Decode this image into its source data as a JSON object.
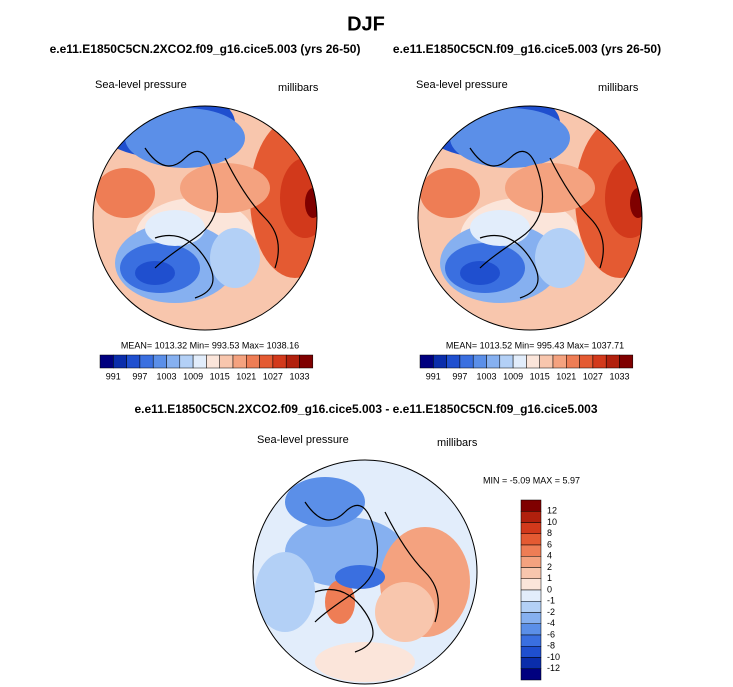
{
  "title": "DJF",
  "panels": [
    {
      "title": "e.e11.E1850C5CN.2XCO2.f09_g16.cice5.003 (yrs 26-50)",
      "left_label": "Sea-level pressure",
      "right_label": "millibars",
      "stats": "MEAN= 1013.32  Min= 993.53  Max= 1038.16",
      "colorbar": {
        "colors": [
          "#00007f",
          "#0a2dab",
          "#1f4fcf",
          "#3a6fe0",
          "#5b8fe8",
          "#86b0f0",
          "#b3d0f6",
          "#e2edfb",
          "#fbe5da",
          "#f8c6ad",
          "#f4a27f",
          "#ee7d55",
          "#e45a32",
          "#d2391b",
          "#b1200d",
          "#7f0000"
        ],
        "labels": [
          "991",
          "997",
          "1003",
          "1009",
          "1015",
          "1021",
          "1027",
          "1033"
        ]
      }
    },
    {
      "title": "e.e11.E1850C5CN.f09_g16.cice5.003 (yrs 26-50)",
      "left_label": "Sea-level pressure",
      "right_label": "millibars",
      "stats": "MEAN= 1013.52  Min= 995.43  Max= 1037.71",
      "colorbar": {
        "colors": [
          "#00007f",
          "#0a2dab",
          "#1f4fcf",
          "#3a6fe0",
          "#5b8fe8",
          "#86b0f0",
          "#b3d0f6",
          "#e2edfb",
          "#fbe5da",
          "#f8c6ad",
          "#f4a27f",
          "#ee7d55",
          "#e45a32",
          "#d2391b",
          "#b1200d",
          "#7f0000"
        ],
        "labels": [
          "991",
          "997",
          "1003",
          "1009",
          "1015",
          "1021",
          "1027",
          "1033"
        ]
      }
    }
  ],
  "diff_panel": {
    "title": "e.e11.E1850C5CN.2XCO2.f09_g16.cice5.003 - e.e11.E1850C5CN.f09_g16.cice5.003",
    "left_label": "Sea-level pressure",
    "right_label": "millibars",
    "stats": "MIN = -5.09 MAX =  5.97",
    "colorbar": {
      "colors": [
        "#7f0000",
        "#b1200d",
        "#d2391b",
        "#e45a32",
        "#ee7d55",
        "#f4a27f",
        "#f8c6ad",
        "#fbe5da",
        "#e2edfb",
        "#b3d0f6",
        "#86b0f0",
        "#5b8fe8",
        "#3a6fe0",
        "#1f4fcf",
        "#0a2dab",
        "#00007f"
      ],
      "labels": [
        "12",
        "10",
        "8",
        "6",
        "4",
        "2",
        "1",
        "0",
        "-1",
        "-2",
        "-4",
        "-6",
        "-8",
        "-10",
        "-12"
      ]
    }
  }
}
